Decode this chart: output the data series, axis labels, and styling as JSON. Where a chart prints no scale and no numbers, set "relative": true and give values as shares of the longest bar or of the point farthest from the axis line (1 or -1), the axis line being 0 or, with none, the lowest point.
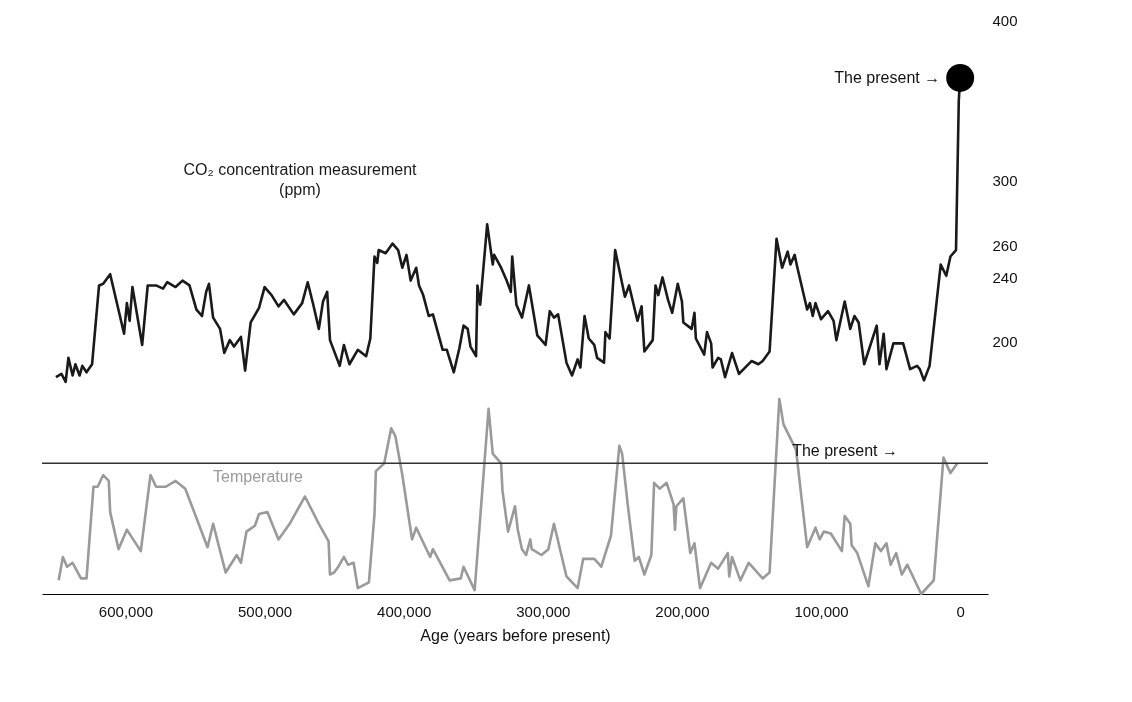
{
  "chart_data": [
    {
      "type": "line",
      "xlim": [
        660000,
        -20000
      ],
      "ylim": [
        170,
        400
      ],
      "yticks": [
        200,
        240,
        260,
        300,
        400
      ],
      "tick_labels": "y",
      "series": [
        {
          "name": "CO₂ concentration measurement (ppm)",
          "color": "#1a1a1a",
          "x": [
            650000,
            646000,
            643000,
            641000,
            638000,
            636000,
            633000,
            631000,
            628000,
            624000,
            619000,
            616000,
            611000,
            601000,
            599000,
            597000,
            595000,
            588000,
            584000,
            578000,
            573000,
            570000,
            564000,
            559000,
            554000,
            549000,
            545000,
            542000,
            540000,
            537000,
            532000,
            529000,
            525000,
            522000,
            517000,
            514000,
            510000,
            504000,
            500000,
            495000,
            490000,
            486000,
            479000,
            473000,
            469000,
            465000,
            461000,
            458000,
            455000,
            453000,
            446000,
            443000,
            439000,
            433000,
            427000,
            424000,
            421000,
            419000,
            418000,
            413000,
            408000,
            404000,
            401000,
            398000,
            395000,
            391000,
            389000,
            386000,
            382000,
            379000,
            372000,
            369000,
            364000,
            360000,
            357000,
            354000,
            352000,
            348000,
            347000,
            345000,
            340000,
            336000,
            335000,
            330000,
            326000,
            323000,
            322000,
            319000,
            315000,
            310000,
            304000,
            298000,
            295000,
            292000,
            289000,
            283000,
            279000,
            275000,
            273000,
            270000,
            267000,
            263000,
            261000,
            256000,
            255000,
            252000,
            248000,
            241000,
            238000,
            232000,
            229000,
            227000,
            221000,
            219000,
            217000,
            214000,
            210000,
            207000,
            203000,
            200000,
            199000,
            193000,
            191000,
            190000,
            184000,
            182000,
            179000,
            178000,
            174000,
            172000,
            169000,
            164000,
            159000,
            150000,
            145000,
            142000,
            137000,
            132000,
            128000,
            124000,
            122000,
            119000,
            117000,
            110000,
            108000,
            106000,
            104000,
            100000,
            95000,
            91000,
            89000,
            83000,
            79000,
            76000,
            73000,
            69000,
            60000,
            58000,
            55000,
            53000,
            48000,
            41000,
            36000,
            31000,
            29000,
            26000,
            22000,
            14000,
            10000,
            7000,
            3000,
            1000,
            0
          ],
          "values": [
            178,
            180,
            175,
            190,
            179,
            186,
            179,
            185,
            181,
            186,
            235,
            236,
            242,
            205,
            224,
            213,
            234,
            198,
            235,
            235,
            233,
            237,
            234,
            238,
            235,
            220,
            216,
            231,
            236,
            215,
            208,
            193,
            201,
            197,
            203,
            182,
            212,
            221,
            234,
            229,
            222,
            226,
            217,
            224,
            237,
            223,
            208,
            225,
            231,
            201,
            185,
            198,
            186,
            195,
            191,
            202,
            253,
            249,
            257,
            255,
            261,
            257,
            246,
            254,
            238,
            246,
            235,
            229,
            216,
            217,
            195,
            195,
            181,
            196,
            210,
            208,
            197,
            191,
            235,
            223,
            273,
            248,
            254,
            246,
            238,
            231,
            253,
            223,
            215,
            235,
            204,
            198,
            219,
            215,
            217,
            187,
            179,
            189,
            184,
            216,
            202,
            198,
            190,
            187,
            206,
            202,
            257,
            228,
            235,
            213,
            222,
            194,
            201,
            235,
            229,
            240,
            226,
            218,
            236,
            225,
            212,
            208,
            218,
            202,
            192,
            206,
            199,
            184,
            190,
            189,
            178,
            193,
            180,
            188,
            186,
            188,
            194,
            264,
            246,
            256,
            248,
            254,
            246,
            220,
            224,
            216,
            224,
            214,
            219,
            213,
            201,
            225,
            208,
            216,
            212,
            186,
            210,
            186,
            205,
            183,
            199,
            199,
            183,
            185,
            183,
            176,
            185,
            248,
            241,
            253,
            257,
            350,
            364
          ]
        },
        {
          "type": "scatter",
          "marker": "circle",
          "color": "#000000",
          "x": [
            0
          ],
          "values": [
            364
          ]
        }
      ],
      "annotations": [
        {
          "text": "The present →",
          "x": 0,
          "y": 364
        }
      ]
    },
    {
      "type": "line",
      "relative": true,
      "xlim": [
        660000,
        -20000
      ],
      "xticks": [
        {
          "value": 600000,
          "label": "600,000"
        },
        {
          "value": 500000,
          "label": "500,000"
        },
        {
          "value": 400000,
          "label": "400,000"
        },
        {
          "value": 300000,
          "label": "300,000"
        },
        {
          "value": 200000,
          "label": "200,000"
        },
        {
          "value": 100000,
          "label": "100,000"
        },
        0
      ],
      "xlabel": "Age (years before present)",
      "tick_labels": "x",
      "series": [
        {
          "name": "Temperature",
          "color": "#9a9a9a",
          "x": [
            648000,
            645000,
            642000,
            638000,
            632000,
            628000,
            623000,
            620000,
            616000,
            612000,
            611000,
            605000,
            599000,
            589000,
            582000,
            578000,
            571000,
            564000,
            557000,
            541000,
            537000,
            528000,
            520000,
            517000,
            513000,
            507000,
            504000,
            498000,
            490000,
            482000,
            471000,
            461000,
            454000,
            453000,
            450000,
            447000,
            443000,
            440000,
            436000,
            433000,
            425000,
            421000,
            420000,
            414000,
            409000,
            406000,
            401000,
            394000,
            391000,
            381000,
            379000,
            367000,
            359000,
            357000,
            349000,
            342000,
            339000,
            336000,
            330000,
            329000,
            325000,
            320000,
            318000,
            315000,
            312000,
            309000,
            308000,
            301000,
            296000,
            292000,
            283000,
            275000,
            271000,
            263000,
            258000,
            251000,
            245000,
            243000,
            239000,
            234000,
            231000,
            227000,
            222000,
            220000,
            216000,
            211000,
            206000,
            205000,
            204000,
            199000,
            194000,
            191000,
            187000,
            179000,
            174000,
            167000,
            166000,
            164000,
            158000,
            152000,
            142000,
            137000,
            130000,
            127000,
            118000,
            110000,
            104000,
            101000,
            98000,
            93000,
            85000,
            83000,
            79000,
            78000,
            74000,
            66000,
            61000,
            57000,
            53000,
            50000,
            46000,
            42000,
            38000,
            28000,
            19000,
            12000,
            7000,
            2000
          ],
          "values": [
            0.07,
            0.19,
            0.14,
            0.16,
            0.08,
            0.08,
            0.55,
            0.55,
            0.61,
            0.58,
            0.42,
            0.23,
            0.33,
            0.22,
            0.61,
            0.55,
            0.55,
            0.58,
            0.54,
            0.24,
            0.36,
            0.11,
            0.2,
            0.16,
            0.32,
            0.35,
            0.41,
            0.42,
            0.28,
            0.36,
            0.5,
            0.36,
            0.27,
            0.1,
            0.11,
            0.14,
            0.19,
            0.15,
            0.16,
            0.03,
            0.06,
            0.41,
            0.63,
            0.67,
            0.85,
            0.81,
            0.61,
            0.28,
            0.34,
            0.19,
            0.23,
            0.07,
            0.08,
            0.14,
            0.02,
            0.67,
            0.95,
            0.72,
            0.67,
            0.53,
            0.32,
            0.45,
            0.33,
            0.23,
            0.2,
            0.28,
            0.23,
            0.2,
            0.23,
            0.36,
            0.09,
            0.03,
            0.18,
            0.18,
            0.14,
            0.3,
            0.76,
            0.72,
            0.46,
            0.17,
            0.19,
            0.1,
            0.2,
            0.57,
            0.54,
            0.57,
            0.46,
            0.33,
            0.45,
            0.49,
            0.21,
            0.26,
            0.03,
            0.16,
            0.13,
            0.21,
            0.09,
            0.19,
            0.07,
            0.16,
            0.08,
            0.11,
            1,
            0.87,
            0.74,
            0.24,
            0.34,
            0.28,
            0.32,
            0.31,
            0.22,
            0.4,
            0.36,
            0.25,
            0.21,
            0.04,
            0.26,
            0.22,
            0.26,
            0.15,
            0.21,
            0.1,
            0.15,
            0,
            0.07,
            0.7,
            0.62,
            0.67
          ]
        }
      ],
      "ref_lines": [
        {
          "axis": "y",
          "value": 0.67,
          "label": "The present →",
          "color": "#333333"
        }
      ]
    }
  ]
}
